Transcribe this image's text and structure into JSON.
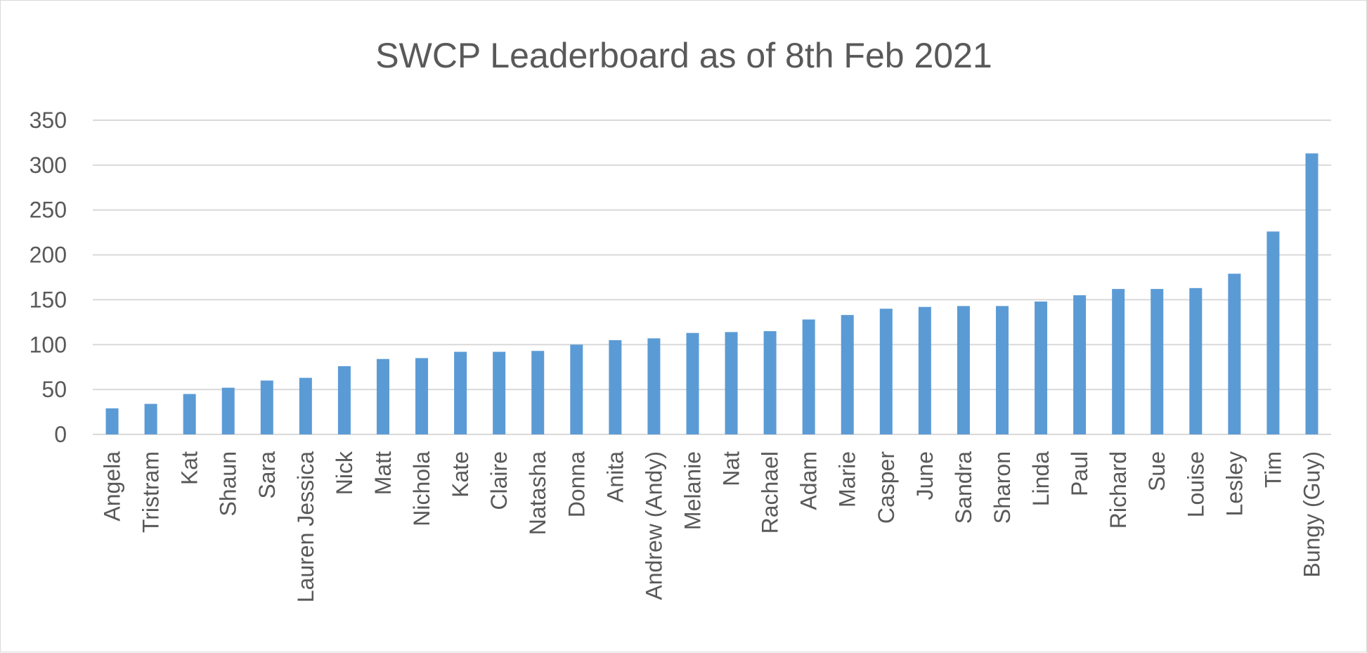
{
  "chart_data": {
    "type": "bar",
    "title": "SWCP Leaderboard as of 8th Feb 2021",
    "xlabel": "",
    "ylabel": "",
    "ylim": [
      0,
      350
    ],
    "yticks": [
      "0",
      "50",
      "100",
      "150",
      "200",
      "250",
      "300",
      "350"
    ],
    "grid": true,
    "legend": "none",
    "bar_color": "#5b9bd5",
    "categories": [
      "Angela",
      "Tristram",
      "Kat",
      "Shaun",
      "Sara",
      "Lauren Jessica",
      "Nick",
      "Matt",
      "Nichola",
      "Kate",
      "Claire",
      "Natasha",
      "Donna",
      "Anita",
      "Andrew (Andy)",
      "Melanie",
      "Nat",
      "Rachael",
      "Adam",
      "Marie",
      "Casper",
      "June",
      "Sandra",
      "Sharon",
      "Linda",
      "Paul",
      "Richard",
      "Sue",
      "Louise",
      "Lesley",
      "Tim",
      "Bungy (Guy)"
    ],
    "values": [
      29,
      34,
      45,
      52,
      60,
      63,
      76,
      84,
      85,
      92,
      92,
      93,
      100,
      105,
      107,
      113,
      114,
      115,
      128,
      133,
      140,
      142,
      143,
      143,
      148,
      155,
      162,
      162,
      163,
      179,
      226,
      313
    ]
  }
}
